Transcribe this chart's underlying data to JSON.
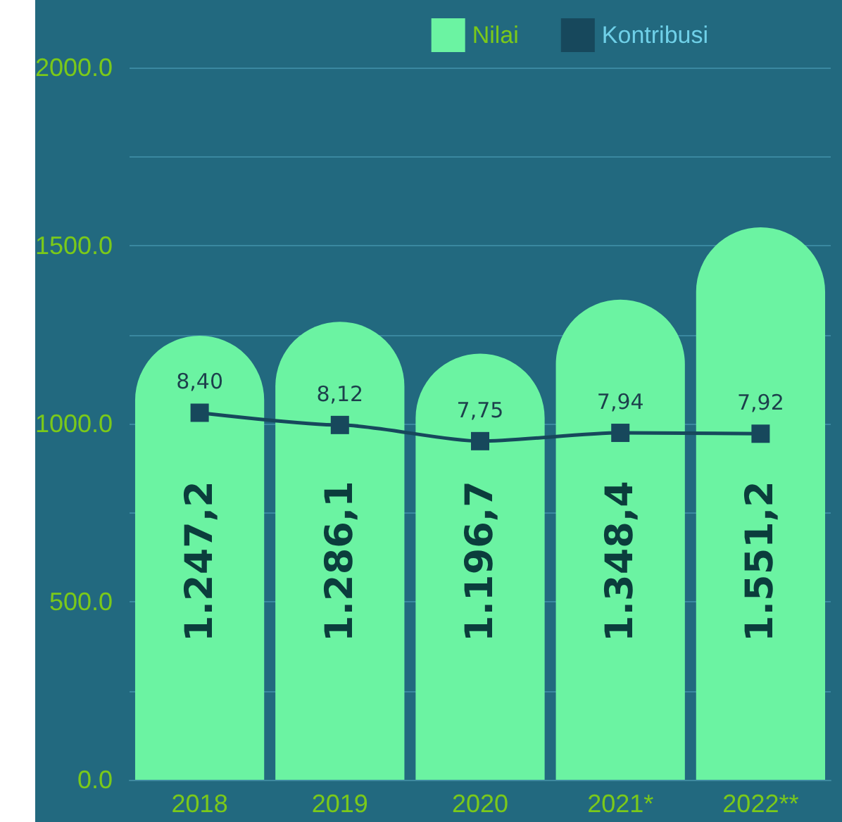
{
  "chart_data": {
    "type": "bar",
    "categories": [
      "2018",
      "2019",
      "2020",
      "2021*",
      "2022**"
    ],
    "series": [
      {
        "name": "Nilai",
        "color": "#6bf3a2",
        "values": [
          1247.2,
          1286.1,
          1196.7,
          1348.4,
          1551.2
        ],
        "value_labels": [
          "1.247,2",
          "1.286,1",
          "1.196,7",
          "1.348,4",
          "1.551,2"
        ]
      },
      {
        "name": "Kontribusi",
        "type": "line",
        "axis": "y2",
        "color": "#17485c",
        "marker": "square",
        "line_style": "solid",
        "values": [
          8.4,
          8.12,
          7.75,
          7.94,
          7.92
        ],
        "value_labels": [
          "8,40",
          "8,12",
          "7,75",
          "7,94",
          "7,92"
        ]
      }
    ],
    "ylim": [
      0,
      2000
    ],
    "yticks": [
      {
        "value": 0,
        "label": "0.0"
      },
      {
        "value": 250,
        "label": null
      },
      {
        "value": 500,
        "label": "500.0"
      },
      {
        "value": 750,
        "label": null
      },
      {
        "value": 1000,
        "label": "1000.0"
      },
      {
        "value": 1250,
        "label": null
      },
      {
        "value": 1500,
        "label": "1500.0"
      },
      {
        "value": 1750,
        "label": null
      },
      {
        "value": 2000,
        "label": "2000.0"
      }
    ],
    "y2lim": [
      0,
      16.3
    ],
    "tick_labels": "xy",
    "grid": "y",
    "legend": "top right"
  }
}
